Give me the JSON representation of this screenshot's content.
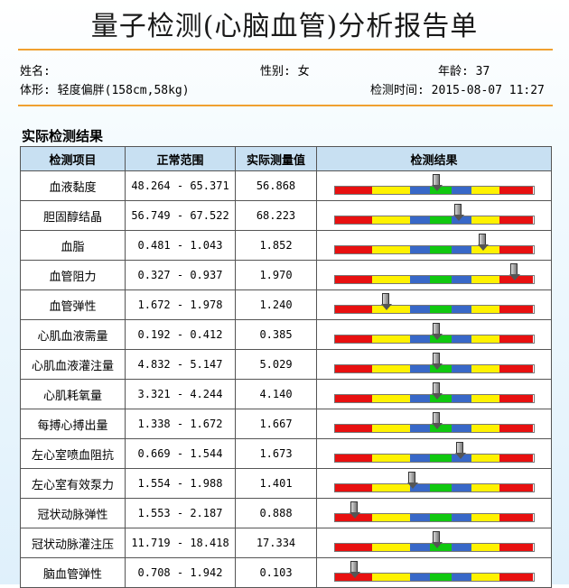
{
  "title": "量子检测(心脑血管)分析报告单",
  "patient": {
    "name_label": "姓名:",
    "gender": "性别: 女",
    "age": "年龄: 37",
    "body_type": "体形: 轻度偏胖(158cm,58kg)",
    "test_time": "检测时间: 2015-08-07 11:27"
  },
  "section_title": "实际检测结果",
  "table": {
    "headers": [
      "检测项目",
      "正常范围",
      "实际测量值",
      "检测结果"
    ],
    "rows": [
      {
        "item": "血液黏度",
        "range": "48.264 - 65.371",
        "value": "56.868",
        "level": 0.51
      },
      {
        "item": "胆固醇结晶",
        "range": "56.749 - 67.522",
        "value": "68.223",
        "level": 0.62
      },
      {
        "item": "血脂",
        "range": "0.481 - 1.043",
        "value": "1.852",
        "level": 0.74
      },
      {
        "item": "血管阻力",
        "range": "0.327 - 0.937",
        "value": "1.970",
        "level": 0.9
      },
      {
        "item": "血管弹性",
        "range": "1.672 - 1.978",
        "value": "1.240",
        "level": 0.26
      },
      {
        "item": "心肌血液需量",
        "range": "0.192 - 0.412",
        "value": "0.385",
        "level": 0.51
      },
      {
        "item": "心肌血液灌注量",
        "range": "4.832 - 5.147",
        "value": "5.029",
        "level": 0.51
      },
      {
        "item": "心肌耗氧量",
        "range": "3.321 - 4.244",
        "value": "4.140",
        "level": 0.51
      },
      {
        "item": "每搏心搏出量",
        "range": "1.338 - 1.672",
        "value": "1.667",
        "level": 0.51
      },
      {
        "item": "左心室喷血阻抗",
        "range": "0.669 - 1.544",
        "value": "1.673",
        "level": 0.63
      },
      {
        "item": "左心室有效泵力",
        "range": "1.554 - 1.988",
        "value": "1.401",
        "level": 0.39
      },
      {
        "item": "冠状动脉弹性",
        "range": "1.553 - 2.187",
        "value": "0.888",
        "level": 0.1
      },
      {
        "item": "冠状动脉灌注压",
        "range": "11.719 - 18.418",
        "value": "17.334",
        "level": 0.51
      },
      {
        "item": "脑血管弹性",
        "range": "0.708 - 1.942",
        "value": "0.103",
        "level": 0.1
      }
    ]
  },
  "bar_colors": {
    "red": "#e81010",
    "yellow": "#fff200",
    "blue": "#3868c8",
    "green": "#10c810"
  }
}
